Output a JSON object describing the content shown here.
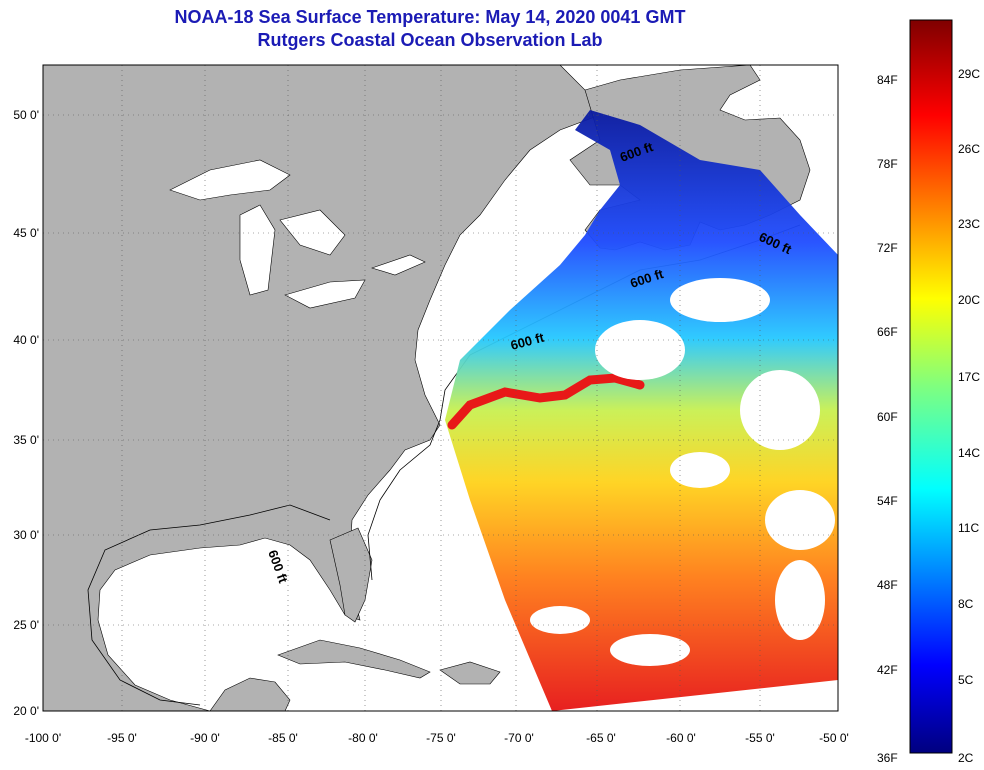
{
  "title": {
    "line1": "NOAA-18 Sea Surface Temperature:  May 14, 2020 0041 GMT",
    "line2": "Rutgers Coastal Ocean Observation Lab"
  },
  "map": {
    "lon_ticks": [
      "-100 0'",
      "-95 0'",
      "-90 0'",
      "-85 0'",
      "-80 0'",
      "-75 0'",
      "-70 0'",
      "-65 0'",
      "-60 0'",
      "-55 0'",
      "-50 0'"
    ],
    "lat_ticks": [
      "50 0'",
      "45 0'",
      "40 0'",
      "35 0'",
      "30 0'",
      "25 0'",
      "20 0'"
    ],
    "contour_labels": [
      "600 ft",
      "600 ft",
      "600 ft",
      "600 ft",
      "600 ft"
    ],
    "colors": {
      "land": "#b2b2b2",
      "ocean": "#ffffff",
      "frame": "#000000"
    }
  },
  "colorbar": {
    "fahrenheit": [
      "84F",
      "78F",
      "72F",
      "66F",
      "60F",
      "54F",
      "48F",
      "42F",
      "36F"
    ],
    "celsius": [
      "29C",
      "26C",
      "23C",
      "20C",
      "17C",
      "14C",
      "11C",
      "8C",
      "5C",
      "2C"
    ]
  }
}
